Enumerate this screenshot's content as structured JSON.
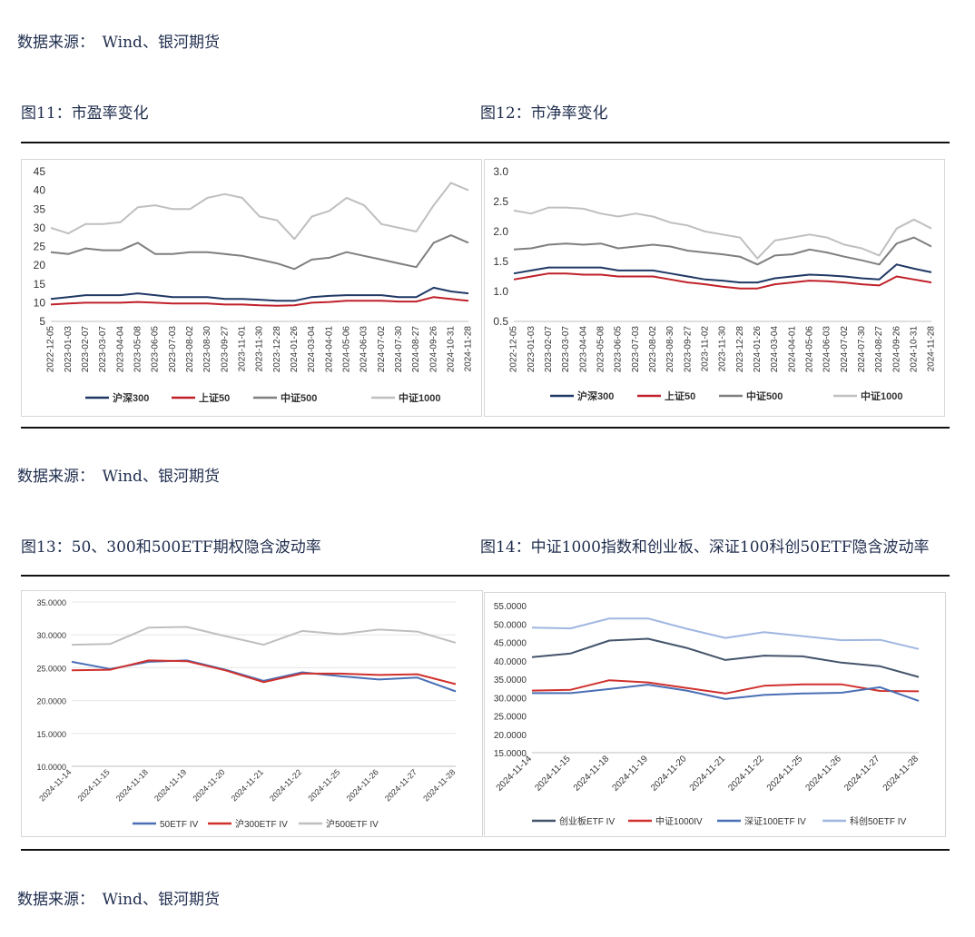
{
  "sources": [
    "数据来源：　Wind、银河期货",
    "数据来源：　Wind、银河期货",
    "数据来源：　Wind、银河期货"
  ],
  "titles": {
    "fig11": "图11：市盈率变化",
    "fig12": "图12：市净率变化",
    "fig13": "图13：50、300和500ETF期权隐含波动率",
    "fig14": "图14：中证1000指数和创业板、深证100科创50ETF隐含波动率"
  },
  "chart_data": [
    {
      "id": "fig11",
      "type": "line",
      "ylim": [
        5,
        45
      ],
      "yticks": [
        "5",
        "10",
        "15",
        "20",
        "25",
        "30",
        "35",
        "40",
        "45"
      ],
      "xticks": [
        "2022-12-05",
        "2023-01-03",
        "2023-02-07",
        "2023-03-07",
        "2023-04-04",
        "2023-05-08",
        "2023-06-05",
        "2023-07-03",
        "2023-08-02",
        "2023-08-30",
        "2023-09-27",
        "2023-11-01",
        "2023-11-30",
        "2023-12-28",
        "2024-01-26",
        "2024-03-04",
        "2024-04-01",
        "2024-05-06",
        "2024-06-03",
        "2024-07-02",
        "2024-07-30",
        "2024-08-27",
        "2024-09-26",
        "2024-10-31",
        "2024-11-28"
      ],
      "series": [
        {
          "name": "沪深300",
          "color": "#1f3864",
          "values": [
            11,
            11.5,
            12,
            12,
            12,
            12.5,
            12,
            11.5,
            11.5,
            11.5,
            11,
            11,
            10.8,
            10.5,
            10.5,
            11.5,
            11.8,
            12,
            12,
            12,
            11.5,
            11.5,
            14,
            13,
            12.5
          ]
        },
        {
          "name": "上证50",
          "color": "#c0202a",
          "values": [
            9.5,
            9.8,
            10,
            10,
            10,
            10.2,
            10,
            9.8,
            9.8,
            9.8,
            9.5,
            9.5,
            9.3,
            9.2,
            9.3,
            10,
            10.2,
            10.5,
            10.5,
            10.5,
            10.3,
            10.3,
            11.5,
            11,
            10.5
          ]
        },
        {
          "name": "中证500",
          "color": "#7f7f7f",
          "values": [
            23.5,
            23,
            24.5,
            24,
            24,
            26,
            23,
            23,
            23.5,
            23.5,
            23,
            22.5,
            21.5,
            20.5,
            19,
            21.5,
            22,
            23.5,
            22.5,
            21.5,
            20.5,
            19.5,
            26,
            28,
            26
          ]
        },
        {
          "name": "中证1000",
          "color": "#bfbfbf",
          "values": [
            30,
            28.5,
            31,
            31,
            31.5,
            35.5,
            36,
            35,
            35,
            38,
            39,
            38,
            33,
            32,
            27,
            33,
            34.5,
            38,
            36,
            31,
            30,
            29,
            36,
            42,
            40
          ]
        }
      ],
      "legend": "bottom"
    },
    {
      "id": "fig12",
      "type": "line",
      "ylim": [
        0.5,
        3.0
      ],
      "yticks": [
        "0.5",
        "1.0",
        "1.5",
        "2.0",
        "2.5",
        "3.0"
      ],
      "xticks": [
        "2022-12-05",
        "2023-01-03",
        "2023-02-07",
        "2023-03-07",
        "2023-04-04",
        "2023-05-08",
        "2023-06-05",
        "2023-07-03",
        "2023-08-02",
        "2023-08-30",
        "2023-09-27",
        "2023-11-02",
        "2023-11-30",
        "2023-12-28",
        "2024-01-26",
        "2024-03-04",
        "2024-04-01",
        "2024-05-06",
        "2024-06-03",
        "2024-07-02",
        "2024-07-30",
        "2024-08-27",
        "2024-09-26",
        "2024-10-31",
        "2024-11-28"
      ],
      "series": [
        {
          "name": "沪深300",
          "color": "#1f3864",
          "values": [
            1.3,
            1.35,
            1.4,
            1.4,
            1.4,
            1.4,
            1.35,
            1.35,
            1.35,
            1.3,
            1.25,
            1.2,
            1.18,
            1.15,
            1.15,
            1.22,
            1.25,
            1.28,
            1.27,
            1.25,
            1.22,
            1.2,
            1.45,
            1.38,
            1.32
          ]
        },
        {
          "name": "上证50",
          "color": "#c0202a",
          "values": [
            1.2,
            1.25,
            1.3,
            1.3,
            1.28,
            1.28,
            1.25,
            1.25,
            1.25,
            1.2,
            1.15,
            1.12,
            1.08,
            1.05,
            1.05,
            1.12,
            1.15,
            1.18,
            1.17,
            1.15,
            1.12,
            1.1,
            1.25,
            1.2,
            1.15
          ]
        },
        {
          "name": "中证500",
          "color": "#7f7f7f",
          "values": [
            1.7,
            1.72,
            1.78,
            1.8,
            1.78,
            1.8,
            1.72,
            1.75,
            1.78,
            1.75,
            1.68,
            1.65,
            1.62,
            1.58,
            1.45,
            1.6,
            1.62,
            1.7,
            1.65,
            1.58,
            1.52,
            1.45,
            1.8,
            1.9,
            1.75
          ]
        },
        {
          "name": "中证1000",
          "color": "#bfbfbf",
          "values": [
            2.35,
            2.3,
            2.4,
            2.4,
            2.38,
            2.3,
            2.25,
            2.3,
            2.25,
            2.15,
            2.1,
            2.0,
            1.95,
            1.9,
            1.55,
            1.85,
            1.9,
            1.95,
            1.9,
            1.78,
            1.72,
            1.6,
            2.05,
            2.2,
            2.05
          ]
        }
      ],
      "legend": "bottom"
    },
    {
      "id": "fig13",
      "type": "line",
      "ylim": [
        10,
        35
      ],
      "yticks": [
        "10.0000",
        "15.0000",
        "20.0000",
        "25.0000",
        "30.0000",
        "35.0000"
      ],
      "xticks": [
        "2024-11-14",
        "2024-11-15",
        "2024-11-18",
        "2024-11-19",
        "2024-11-20",
        "2024-11-21",
        "2024-11-22",
        "2024-11-25",
        "2024-11-26",
        "2024-11-27",
        "2024-11-28"
      ],
      "series": [
        {
          "name": "50ETF IV",
          "color": "#4a6fb5",
          "values": [
            25.9,
            24.8,
            25.9,
            26.1,
            24.7,
            23.0,
            24.3,
            23.7,
            23.2,
            23.5,
            21.4
          ]
        },
        {
          "name": "沪300ETF IV",
          "color": "#d0312d",
          "values": [
            24.6,
            24.7,
            26.1,
            26.0,
            24.6,
            22.8,
            24.1,
            24.1,
            23.9,
            24.0,
            22.5
          ]
        },
        {
          "name": "沪500ETF IV",
          "color": "#bfbfbf",
          "values": [
            28.5,
            28.6,
            31.1,
            31.2,
            29.8,
            28.5,
            30.6,
            30.1,
            30.8,
            30.5,
            28.8
          ]
        }
      ],
      "legend": "bottom"
    },
    {
      "id": "fig14",
      "type": "line",
      "ylim": [
        15,
        55
      ],
      "yticks": [
        "15.0000",
        "20.0000",
        "25.0000",
        "30.0000",
        "35.0000",
        "40.0000",
        "45.0000",
        "50.0000",
        "55.0000"
      ],
      "xticks": [
        "2024-11-14",
        "2024-11-15",
        "2024-11-18",
        "2024-11-19",
        "2024-11-20",
        "2024-11-21",
        "2024-11-22",
        "2024-11-25",
        "2024-11-26",
        "2024-11-27",
        "2024-11-28"
      ],
      "series": [
        {
          "name": "创业板ETF IV",
          "color": "#44546a",
          "values": [
            41.0,
            42.0,
            45.5,
            46.0,
            43.5,
            40.2,
            41.4,
            41.2,
            39.5,
            38.5,
            35.6
          ]
        },
        {
          "name": "中证1000IV",
          "color": "#d0312d",
          "values": [
            31.9,
            32.1,
            34.7,
            34.1,
            32.6,
            31.1,
            33.2,
            33.6,
            33.6,
            31.8,
            31.7
          ]
        },
        {
          "name": "深证100ETF IV",
          "color": "#4a6fb5",
          "values": [
            31.2,
            31.2,
            32.3,
            33.5,
            31.9,
            29.6,
            30.7,
            31.1,
            31.3,
            32.8,
            29.1
          ]
        },
        {
          "name": "科创50ETF IV",
          "color": "#9fb6e0",
          "values": [
            49.0,
            48.8,
            51.5,
            51.5,
            48.7,
            46.2,
            47.8,
            46.7,
            45.6,
            45.7,
            43.2
          ]
        }
      ],
      "legend": "bottom"
    }
  ]
}
